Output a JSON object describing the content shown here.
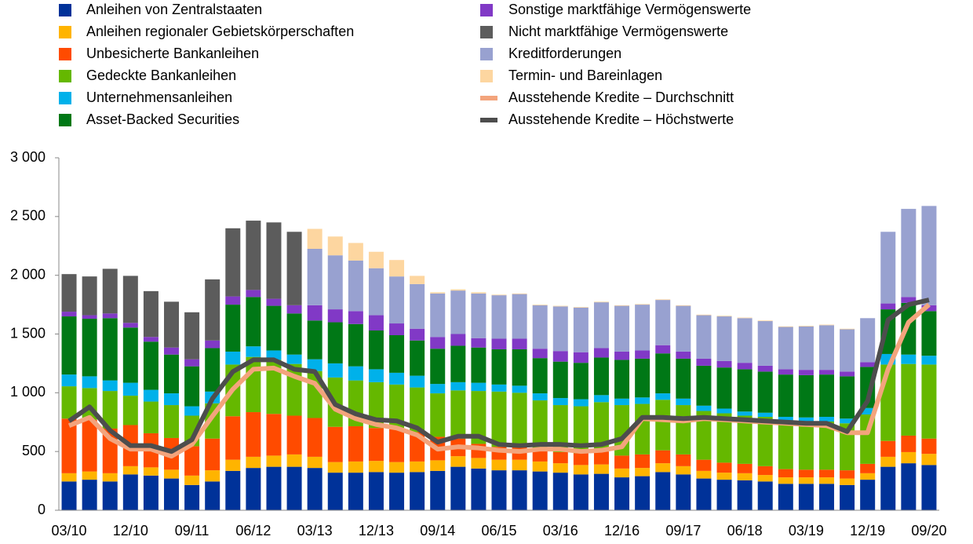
{
  "chart_data": {
    "type": "bar",
    "stacked": true,
    "categories": [
      "03/10",
      null,
      null,
      "12/10",
      null,
      null,
      "09/11",
      null,
      null,
      "06/12",
      null,
      null,
      "03/13",
      null,
      null,
      "12/13",
      null,
      null,
      "09/14",
      null,
      null,
      "06/15",
      null,
      null,
      "03/16",
      null,
      null,
      "12/16",
      null,
      null,
      "09/17",
      null,
      null,
      "06/18",
      null,
      null,
      "03/19",
      null,
      null,
      "12/19",
      null,
      null,
      "09/20"
    ],
    "ylim": [
      0,
      3000
    ],
    "yticks": [
      0,
      500,
      {
        "value": 1000,
        "label": "1 000"
      },
      {
        "value": 1500,
        "label": "1 500"
      },
      {
        "value": 2000,
        "label": "2 000"
      },
      {
        "value": 2500,
        "label": "2 500"
      },
      {
        "value": 3000,
        "label": "3 000"
      }
    ],
    "grid": false,
    "series": [
      {
        "name": "Anleihen von Zentralstaaten",
        "type": "bar",
        "color": "#003299",
        "values": [
          245,
          260,
          245,
          305,
          295,
          270,
          215,
          245,
          335,
          360,
          370,
          370,
          360,
          320,
          320,
          325,
          320,
          325,
          335,
          370,
          355,
          340,
          340,
          330,
          320,
          305,
          310,
          280,
          290,
          325,
          305,
          270,
          260,
          255,
          245,
          225,
          225,
          225,
          215,
          260,
          370,
          400,
          385
        ]
      },
      {
        "name": "Anleihen regionaler Gebietskörperschaften",
        "type": "bar",
        "color": "#ffb400",
        "values": [
          70,
          70,
          70,
          70,
          70,
          75,
          80,
          95,
          95,
          95,
          95,
          105,
          95,
          90,
          95,
          95,
          90,
          90,
          90,
          90,
          90,
          90,
          90,
          85,
          80,
          80,
          80,
          75,
          70,
          75,
          70,
          65,
          60,
          60,
          55,
          55,
          55,
          55,
          55,
          55,
          85,
          95,
          95
        ]
      },
      {
        "name": "Unbesicherte Bankanleihen",
        "type": "bar",
        "color": "#ff4b00",
        "values": [
          465,
          440,
          380,
          350,
          290,
          270,
          250,
          270,
          370,
          380,
          355,
          330,
          330,
          300,
          300,
          280,
          280,
          250,
          200,
          150,
          120,
          110,
          110,
          100,
          95,
          100,
          110,
          110,
          115,
          110,
          100,
          95,
          85,
          80,
          75,
          70,
          65,
          65,
          70,
          80,
          135,
          140,
          130
        ]
      },
      {
        "name": "Gedeckte Bankanleihen",
        "type": "bar",
        "color": "#65b800",
        "values": [
          275,
          270,
          320,
          250,
          270,
          280,
          260,
          300,
          440,
          470,
          460,
          440,
          400,
          420,
          390,
          390,
          380,
          380,
          370,
          410,
          450,
          470,
          460,
          420,
          400,
          400,
          420,
          430,
          430,
          430,
          420,
          415,
          420,
          410,
          420,
          415,
          410,
          410,
          400,
          420,
          650,
          610,
          630
        ]
      },
      {
        "name": "Unternehmensanleihen",
        "type": "bar",
        "color": "#00b1ea",
        "values": [
          100,
          100,
          90,
          110,
          100,
          100,
          80,
          100,
          110,
          90,
          80,
          80,
          100,
          120,
          120,
          110,
          100,
          100,
          80,
          70,
          70,
          60,
          60,
          60,
          60,
          60,
          60,
          55,
          55,
          55,
          55,
          45,
          40,
          35,
          35,
          30,
          35,
          40,
          40,
          55,
          90,
          80,
          75
        ]
      },
      {
        "name": "Asset-Backed Securities",
        "type": "bar",
        "color": "#007816",
        "values": [
          495,
          490,
          530,
          470,
          410,
          330,
          340,
          370,
          400,
          420,
          380,
          350,
          330,
          350,
          360,
          330,
          320,
          300,
          300,
          310,
          300,
          300,
          310,
          300,
          310,
          310,
          320,
          330,
          330,
          340,
          340,
          340,
          350,
          360,
          350,
          360,
          360,
          360,
          360,
          350,
          380,
          440,
          380
        ]
      },
      {
        "name": "Sonstige marktfähige Vermögenswerte",
        "type": "bar",
        "color": "#8139c6",
        "values": [
          40,
          30,
          40,
          40,
          40,
          60,
          60,
          65,
          70,
          60,
          60,
          70,
          130,
          110,
          110,
          130,
          100,
          100,
          100,
          100,
          80,
          90,
          90,
          80,
          90,
          90,
          80,
          70,
          70,
          70,
          60,
          60,
          55,
          55,
          50,
          45,
          45,
          40,
          40,
          40,
          50,
          50,
          50
        ]
      },
      {
        "name": "Nicht marktfähige Vermögenswerte",
        "type": "bar",
        "color": "#5c5c5c",
        "values": [
          320,
          330,
          380,
          400,
          390,
          390,
          400,
          520,
          580,
          590,
          650,
          625,
          0,
          0,
          0,
          0,
          0,
          0,
          0,
          0,
          0,
          0,
          0,
          0,
          0,
          0,
          0,
          0,
          0,
          0,
          0,
          0,
          0,
          0,
          0,
          0,
          0,
          0,
          0,
          0,
          0,
          0,
          0
        ]
      },
      {
        "name": "Kreditforderungen",
        "type": "bar",
        "color": "#98a1d0",
        "values": [
          0,
          0,
          0,
          0,
          0,
          0,
          0,
          0,
          0,
          0,
          0,
          0,
          480,
          460,
          430,
          400,
          400,
          380,
          370,
          370,
          380,
          370,
          380,
          370,
          380,
          380,
          390,
          390,
          390,
          385,
          390,
          370,
          380,
          380,
          380,
          360,
          370,
          380,
          360,
          375,
          610,
          750,
          845
        ]
      },
      {
        "name": "Termin- und Bareinlagen",
        "type": "bar",
        "color": "#fdd6a0",
        "values": [
          0,
          0,
          0,
          0,
          0,
          0,
          0,
          0,
          0,
          0,
          0,
          0,
          170,
          160,
          150,
          140,
          140,
          70,
          10,
          10,
          10,
          5,
          5,
          5,
          5,
          5,
          5,
          5,
          5,
          5,
          5,
          5,
          5,
          5,
          5,
          5,
          5,
          5,
          5,
          0,
          0,
          0,
          0
        ]
      },
      {
        "name": "Ausstehende Kredite – Durchschnitt",
        "type": "line",
        "color": "#f3a47c",
        "values": [
          720,
          790,
          610,
          520,
          520,
          460,
          560,
          800,
          1030,
          1200,
          1210,
          1140,
          1080,
          860,
          780,
          730,
          700,
          640,
          520,
          540,
          530,
          510,
          500,
          520,
          520,
          500,
          510,
          540,
          780,
          770,
          760,
          780,
          770,
          760,
          750,
          740,
          730,
          720,
          660,
          660,
          1200,
          1600,
          1750
        ]
      },
      {
        "name": "Ausstehende Kredite – Höchstwerte",
        "type": "line",
        "color": "#4d4d4d",
        "values": [
          760,
          880,
          680,
          550,
          550,
          500,
          600,
          950,
          1180,
          1280,
          1280,
          1200,
          1180,
          900,
          820,
          770,
          760,
          700,
          580,
          630,
          630,
          560,
          550,
          560,
          560,
          550,
          560,
          610,
          790,
          790,
          780,
          790,
          780,
          770,
          760,
          750,
          740,
          740,
          670,
          930,
          1620,
          1750,
          1790
        ]
      }
    ]
  }
}
